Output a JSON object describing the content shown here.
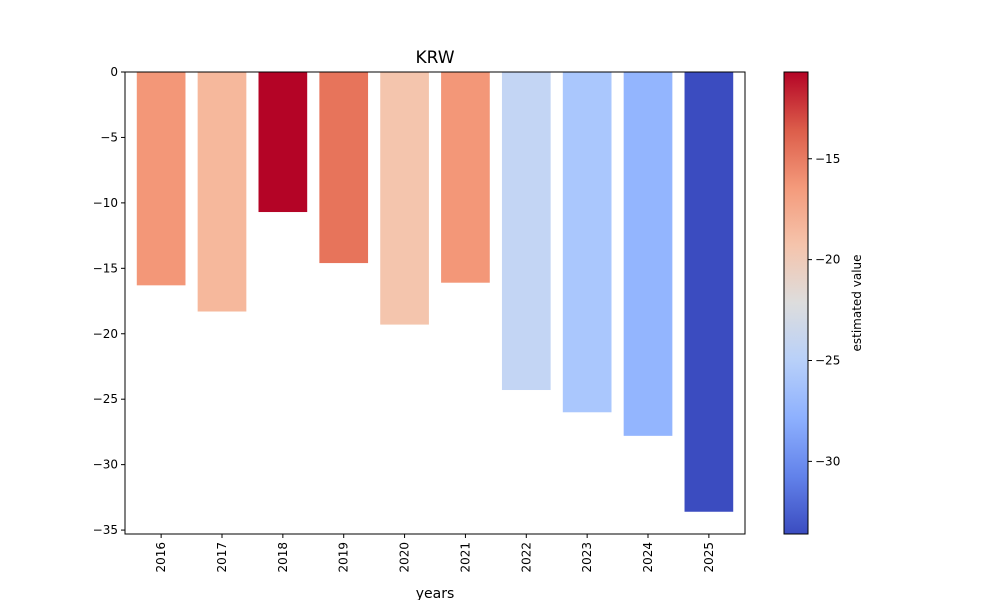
{
  "chart_data": {
    "type": "bar",
    "title": "KRW",
    "xlabel": "years",
    "ylabel": "",
    "categories": [
      "2016",
      "2017",
      "2018",
      "2019",
      "2020",
      "2021",
      "2022",
      "2023",
      "2024",
      "2025"
    ],
    "values": [
      -16.3,
      -18.3,
      -10.7,
      -14.6,
      -19.3,
      -16.1,
      -24.3,
      -26.0,
      -27.8,
      -33.6
    ],
    "bar_colors": [
      "#f39778",
      "#f6b89c",
      "#b40426",
      "#e7745b",
      "#f4c5ad",
      "#f39778",
      "#c3d5f4",
      "#aac7fd",
      "#93b5fe",
      "#3b4cc0"
    ],
    "ylim": [
      -35.3,
      0
    ],
    "yticks": [
      0,
      -5,
      -10,
      -15,
      -20,
      -25,
      -30,
      -35
    ],
    "ytick_labels": [
      "0",
      "−5",
      "−10",
      "−15",
      "−20",
      "−25",
      "−30",
      "−35"
    ],
    "colorbar": {
      "label": "estimated value",
      "range": [
        -33.6,
        -10.7
      ],
      "ticks": [
        -15,
        -20,
        -25,
        -30
      ],
      "tick_labels": [
        "−15",
        "−20",
        "−25",
        "−30"
      ],
      "colormap": "coolwarm",
      "stops": [
        "#3b4cc0",
        "#6282ea",
        "#8db0fe",
        "#b8d0f9",
        "#dddddd",
        "#f5c4ac",
        "#f49a7b",
        "#dc5d4a",
        "#b40426"
      ]
    },
    "grid": false,
    "legend": "none"
  }
}
